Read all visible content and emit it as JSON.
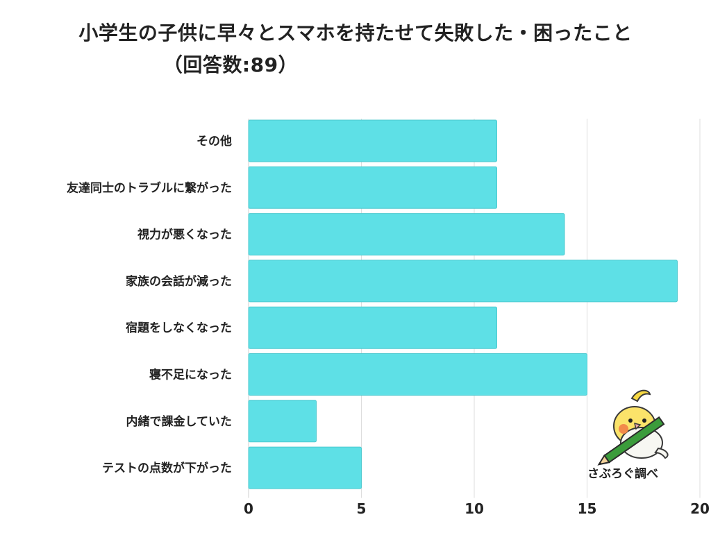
{
  "title_line1": "小学生の子供に早々とスマホを持たせて失敗した・困ったこと",
  "title_line2": "（回答数:89）",
  "credit": "さぶろぐ調べ",
  "mascot_icon": "cockatiel-with-pencil-icon",
  "colors": {
    "bar": "#5ee0e6",
    "bar_stroke": "#4cc9cf",
    "grid": "#dcdcdc"
  },
  "chart_data": {
    "type": "bar",
    "orientation": "horizontal",
    "categories": [
      "その他",
      "友達同士のトラブルに繋がった",
      "視力が悪くなった",
      "家族の会話が減った",
      "宿題をしなくなった",
      "寝不足になった",
      "内緒で課金していた",
      "テストの点数が下がった"
    ],
    "values": [
      11,
      11,
      14,
      19,
      11,
      15,
      3,
      5
    ],
    "xlim": [
      0,
      20
    ],
    "xticks": [
      0,
      5,
      10,
      15,
      20
    ],
    "grid": true
  }
}
